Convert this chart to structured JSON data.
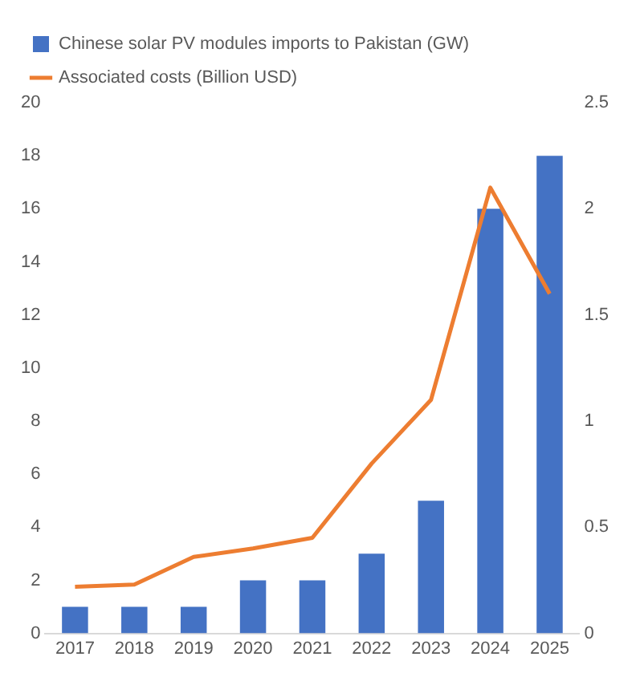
{
  "chart_data": {
    "type": "bar",
    "categories": [
      "2017",
      "2018",
      "2019",
      "2020",
      "2021",
      "2022",
      "2023",
      "2024",
      "2025"
    ],
    "series": [
      {
        "name": "Chinese solar PV modules imports to Pakistan (GW)",
        "color": "#4472c4",
        "values": [
          1,
          1,
          1,
          2,
          2,
          3,
          5,
          16,
          18
        ]
      },
      {
        "name": "Associated costs (Billion USD)",
        "type": "line",
        "axis": "y2",
        "color": "#ed7d31",
        "values": [
          0.22,
          0.23,
          0.36,
          0.4,
          0.45,
          0.8,
          1.1,
          2.1,
          1.6
        ]
      }
    ],
    "ylim": [
      0,
      20
    ],
    "yticks": [
      0,
      2,
      4,
      6,
      8,
      10,
      12,
      14,
      16,
      18,
      20
    ],
    "y2lim": [
      0,
      2.5
    ],
    "y2ticks": [
      0,
      0.5,
      1,
      1.5,
      2,
      2.5
    ],
    "grid": false,
    "legend": "top left",
    "marker": "none",
    "line_style": "solid"
  }
}
